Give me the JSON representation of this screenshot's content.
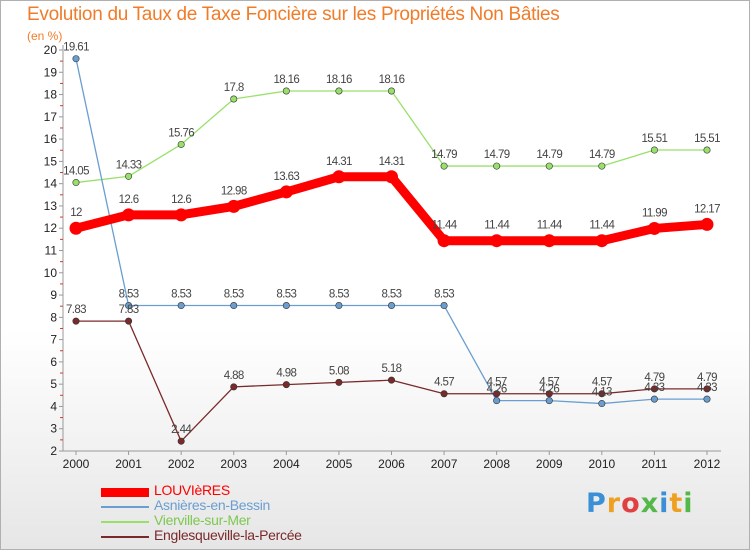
{
  "chart_data": {
    "type": "line",
    "title": "Evolution du Taux de Taxe Foncière sur les Propriétés Non Bâties",
    "subtitle": "(en %)",
    "categories": [
      "2000",
      "2001",
      "2002",
      "2003",
      "2004",
      "2005",
      "2006",
      "2007",
      "2008",
      "2009",
      "2010",
      "2011",
      "2012"
    ],
    "ylim": [
      2,
      20
    ],
    "yticks": [
      "2",
      "3",
      "4",
      "5",
      "6",
      "7",
      "8",
      "9",
      "10",
      "11",
      "12",
      "13",
      "14",
      "15",
      "16",
      "17",
      "18",
      "19",
      "20"
    ],
    "grid": false,
    "legend_position": "bottom-left",
    "series": [
      {
        "name": "LOUVIèRES",
        "color": "#ff0000",
        "values": [
          12,
          12.6,
          12.6,
          12.98,
          13.63,
          14.31,
          14.31,
          11.44,
          11.44,
          11.44,
          11.44,
          11.99,
          12.17
        ],
        "labels": [
          "12",
          "12.6",
          "12.6",
          "12.98",
          "13.63",
          "14.31",
          "14.31",
          "11.44",
          "11.44",
          "11.44",
          "11.44",
          "11.99",
          "12.17"
        ]
      },
      {
        "name": "Asnières-en-Bessin",
        "color": "#6a9ed0",
        "values": [
          19.61,
          8.53,
          8.53,
          8.53,
          8.53,
          8.53,
          8.53,
          8.53,
          4.26,
          4.26,
          4.13,
          4.33,
          4.33
        ],
        "labels": [
          "19.61",
          "8.53",
          "8.53",
          "8.53",
          "8.53",
          "8.53",
          "8.53",
          "8.53",
          "4.26",
          "4.26",
          "4.13",
          "4.33",
          "4.33"
        ]
      },
      {
        "name": "Vierville-sur-Mer",
        "color": "#99e06a",
        "values": [
          14.05,
          14.33,
          15.76,
          17.8,
          18.16,
          18.16,
          18.16,
          14.79,
          14.79,
          14.79,
          14.79,
          15.51,
          15.51
        ],
        "labels": [
          "14.05",
          "14.33",
          "15.76",
          "17.8",
          "18.16",
          "18.16",
          "18.16",
          "14.79",
          "14.79",
          "14.79",
          "14.79",
          "15.51",
          "15.51"
        ]
      },
      {
        "name": "Englesqueville-la-Percée",
        "color": "#7a2a2a",
        "values": [
          7.83,
          7.83,
          2.44,
          4.88,
          4.98,
          5.08,
          5.18,
          4.57,
          4.57,
          4.57,
          4.57,
          4.79,
          4.79
        ],
        "labels": [
          "7.83",
          "7.83",
          "2.44",
          "4.88",
          "4.98",
          "5.08",
          "5.18",
          "4.57",
          "4.57",
          "4.57",
          "4.57",
          "4.79",
          "4.79"
        ]
      }
    ]
  },
  "logo": {
    "text": "Proxiti",
    "letter_colors": [
      "#3a8fd6",
      "#f0a020",
      "#e04040",
      "#52b848",
      "#3a8fd6",
      "#f0a020",
      "#52b848"
    ]
  }
}
